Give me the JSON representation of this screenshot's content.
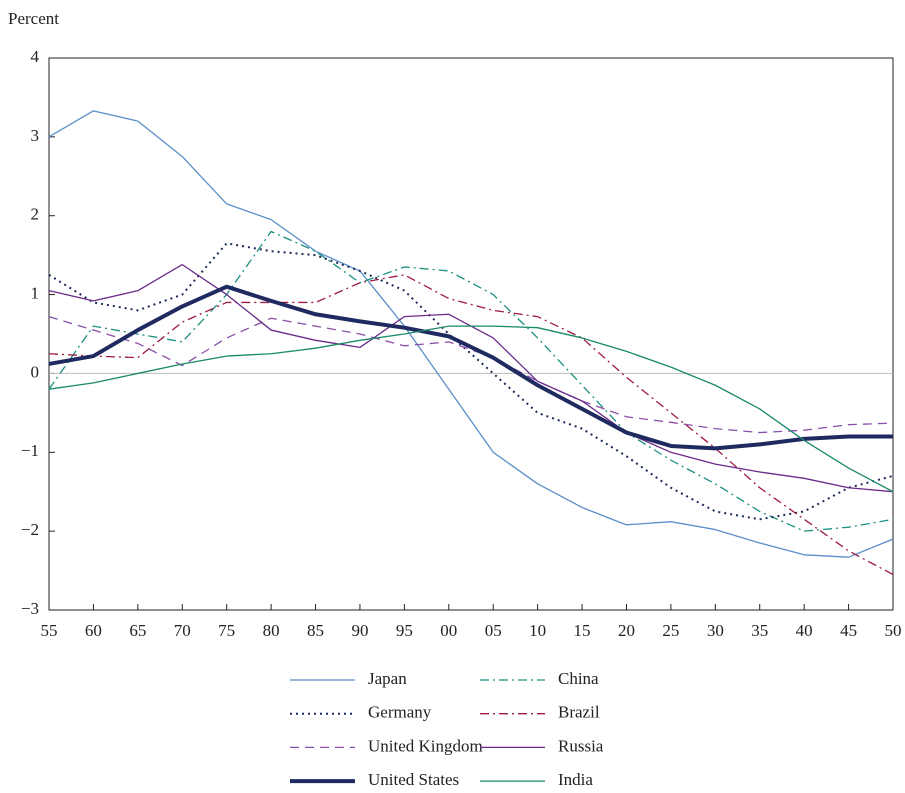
{
  "chart_data": {
    "type": "line",
    "y_label": "Percent",
    "categories": [
      "55",
      "60",
      "65",
      "70",
      "75",
      "80",
      "85",
      "90",
      "95",
      "00",
      "05",
      "10",
      "15",
      "20",
      "25",
      "30",
      "35",
      "40",
      "45",
      "50"
    ],
    "ylim": [
      -3,
      4
    ],
    "yticks": [
      {
        "value": -3,
        "label": "−3"
      },
      {
        "value": -2,
        "label": "−2"
      },
      {
        "value": -1,
        "label": "−1"
      },
      0,
      1,
      2,
      3,
      4
    ],
    "zero_line": true,
    "series": [
      {
        "name": "Japan",
        "color": "#5b8fc9",
        "line_style": "solid",
        "values": [
          3.0,
          3.33,
          3.2,
          2.75,
          2.15,
          1.95,
          1.55,
          1.3,
          0.6,
          -0.2,
          -1.0,
          -1.4,
          -1.7,
          -1.92,
          -1.88,
          -1.98,
          -2.15,
          -2.3,
          -2.33,
          -2.1
        ]
      },
      {
        "name": "China",
        "color": "#1a9080",
        "line_style": "dashdot",
        "values": [
          -0.2,
          0.6,
          0.5,
          0.4,
          1.0,
          1.8,
          1.55,
          1.15,
          1.35,
          1.3,
          1.0,
          0.45,
          -0.15,
          -0.75,
          -1.1,
          -1.4,
          -1.75,
          -2.0,
          -1.95,
          -1.85
        ]
      },
      {
        "name": "Germany",
        "color": "#1a2a5a",
        "line_style": "dotted",
        "values": [
          1.25,
          0.9,
          0.8,
          1.0,
          1.65,
          1.55,
          1.5,
          1.3,
          1.05,
          0.5,
          0.0,
          -0.5,
          -0.7,
          -1.05,
          -1.45,
          -1.75,
          -1.85,
          -1.75,
          -1.45,
          -1.3
        ]
      },
      {
        "name": "Brazil",
        "color": "#a01a40",
        "line_style": "dashdot",
        "values": [
          0.25,
          0.22,
          0.2,
          0.65,
          0.9,
          0.9,
          0.9,
          1.15,
          1.25,
          0.95,
          0.8,
          0.72,
          0.45,
          -0.05,
          -0.5,
          -0.95,
          -1.45,
          -1.85,
          -2.25,
          -2.55
        ]
      },
      {
        "name": "United Kingdom",
        "color": "#8a4fa8",
        "line_style": "dashed",
        "values": [
          0.72,
          0.55,
          0.38,
          0.1,
          0.45,
          0.7,
          0.6,
          0.5,
          0.35,
          0.4,
          0.2,
          -0.1,
          -0.35,
          -0.55,
          -0.62,
          -0.7,
          -0.75,
          -0.72,
          -0.65,
          -0.63
        ]
      },
      {
        "name": "Russia",
        "color": "#6a2a8a",
        "line_style": "solid",
        "values": [
          1.05,
          0.92,
          1.05,
          1.38,
          1.0,
          0.55,
          0.42,
          0.33,
          0.72,
          0.75,
          0.45,
          -0.1,
          -0.35,
          -0.75,
          -1.0,
          -1.15,
          -1.25,
          -1.33,
          -1.45,
          -1.5
        ]
      },
      {
        "name": "United States",
        "color": "#1f2a60",
        "line_style": "thick",
        "values": [
          0.12,
          0.22,
          0.55,
          0.85,
          1.1,
          0.92,
          0.75,
          0.66,
          0.58,
          0.47,
          0.2,
          -0.15,
          -0.45,
          -0.75,
          -0.92,
          -0.95,
          -0.9,
          -0.83,
          -0.8,
          -0.8
        ]
      },
      {
        "name": "India",
        "color": "#1a8a6a",
        "line_style": "solid",
        "values": [
          -0.2,
          -0.12,
          0.0,
          0.12,
          0.22,
          0.25,
          0.32,
          0.42,
          0.5,
          0.6,
          0.6,
          0.58,
          0.45,
          0.28,
          0.08,
          -0.15,
          -0.45,
          -0.85,
          -1.2,
          -1.5
        ]
      }
    ]
  }
}
